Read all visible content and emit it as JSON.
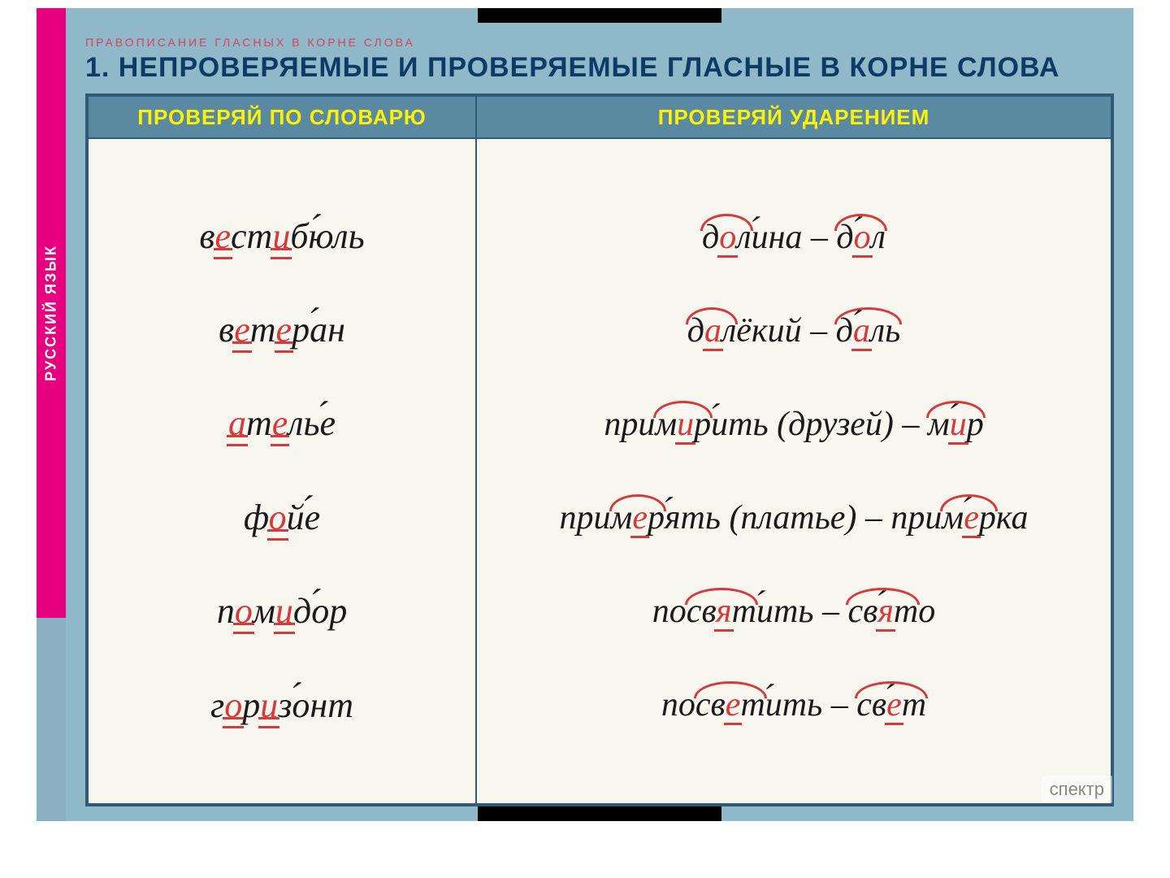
{
  "spine": {
    "label": "РУССКИЙ ЯЗЫК"
  },
  "overtitle": "ПРАВОПИСАНИЕ ГЛАСНЫХ В КОРНЕ СЛОВА",
  "title": "1. НЕПРОВЕРЯЕМЫЕ И ПРОВЕРЯЕМЫЕ ГЛАСНЫЕ В КОРНЕ СЛОВА",
  "headers": {
    "left": "ПРОВЕРЯЙ ПО СЛОВАРЮ",
    "right": "ПРОВЕРЯЙ УДАРЕНИЕМ"
  },
  "logo": "спектр",
  "colors": {
    "frame_bg": "#8fb9c9",
    "header_bg": "#5a8aa2",
    "header_text": "#fff200",
    "border": "#2f5a78",
    "panel_bg": "#f7f7ef",
    "text": "#1a1a1a",
    "highlight": "#d73a3a",
    "spine": "#e6007e",
    "title_text": "#0d3b66"
  },
  "left_column": [
    {
      "parts": [
        {
          "t": "в"
        },
        {
          "t": "е",
          "hl": "dbl"
        },
        {
          "t": "ст"
        },
        {
          "t": "и",
          "hl": "dbl"
        },
        {
          "t": "б"
        },
        {
          "t": "ю",
          "stress": true
        },
        {
          "t": "ль"
        }
      ]
    },
    {
      "parts": [
        {
          "t": "в"
        },
        {
          "t": "е",
          "hl": "dbl"
        },
        {
          "t": "т"
        },
        {
          "t": "е",
          "hl": "dbl"
        },
        {
          "t": "р"
        },
        {
          "t": "а",
          "stress": true
        },
        {
          "t": "н"
        }
      ]
    },
    {
      "parts": [
        {
          "t": "а",
          "hl": "dbl"
        },
        {
          "t": "т"
        },
        {
          "t": "е",
          "hl": "dbl"
        },
        {
          "t": "ль"
        },
        {
          "t": "е",
          "stress": true
        }
      ]
    },
    {
      "parts": [
        {
          "t": "ф"
        },
        {
          "t": "о",
          "hl": "dbl"
        },
        {
          "t": "й"
        },
        {
          "t": "е",
          "stress": true
        }
      ]
    },
    {
      "parts": [
        {
          "t": "п"
        },
        {
          "t": "о",
          "hl": "dbl"
        },
        {
          "t": "м"
        },
        {
          "t": "и",
          "hl": "dbl"
        },
        {
          "t": "д"
        },
        {
          "t": "о",
          "stress": true
        },
        {
          "t": "р"
        }
      ]
    },
    {
      "parts": [
        {
          "t": "г"
        },
        {
          "t": "о",
          "hl": "dbl"
        },
        {
          "t": "р"
        },
        {
          "t": "и",
          "hl": "dbl"
        },
        {
          "t": "з"
        },
        {
          "t": "о",
          "stress": true
        },
        {
          "t": "нт"
        }
      ]
    }
  ],
  "right_column": [
    {
      "parts": [
        {
          "arc": [
            {
              "t": "д"
            },
            {
              "t": "о",
              "hl": "sgl"
            },
            {
              "t": "л"
            }
          ]
        },
        {
          "t": "и",
          "stress": true
        },
        {
          "t": "на"
        },
        {
          "t": "–",
          "dash": true
        },
        {
          "arc": [
            {
              "t": "д"
            },
            {
              "t": "о",
              "hl": "sgl",
              "stress": true
            },
            {
              "t": "л"
            }
          ]
        }
      ]
    },
    {
      "parts": [
        {
          "arc": [
            {
              "t": "д"
            },
            {
              "t": "а",
              "hl": "sgl"
            },
            {
              "t": "л"
            }
          ]
        },
        {
          "t": "ёкий"
        },
        {
          "t": "–",
          "dash": true
        },
        {
          "arc": [
            {
              "t": "д"
            },
            {
              "t": "а",
              "hl": "sgl",
              "stress": true
            },
            {
              "t": "ль"
            }
          ]
        }
      ]
    },
    {
      "parts": [
        {
          "t": "при"
        },
        {
          "arc": [
            {
              "t": "м"
            },
            {
              "t": "и",
              "hl": "sgl"
            },
            {
              "t": "р"
            }
          ]
        },
        {
          "t": "и",
          "stress": true
        },
        {
          "t": "ть (друзей)"
        },
        {
          "t": "–",
          "dash": true
        },
        {
          "arc": [
            {
              "t": "м"
            },
            {
              "t": "и",
              "hl": "sgl",
              "stress": true
            },
            {
              "t": "р"
            }
          ]
        }
      ]
    },
    {
      "parts": [
        {
          "t": "при"
        },
        {
          "arc": [
            {
              "t": "м"
            },
            {
              "t": "е",
              "hl": "sgl"
            },
            {
              "t": "р"
            }
          ]
        },
        {
          "t": "я",
          "stress": true
        },
        {
          "t": "ть (платье)"
        },
        {
          "t": "–",
          "dash": true
        },
        {
          "t": "при"
        },
        {
          "arc": [
            {
              "t": "м"
            },
            {
              "t": "е",
              "hl": "sgl",
              "stress": true
            },
            {
              "t": "р"
            }
          ]
        },
        {
          "t": "ка"
        }
      ]
    },
    {
      "parts": [
        {
          "t": "по"
        },
        {
          "arc": [
            {
              "t": "св"
            },
            {
              "t": "я",
              "hl": "sgl"
            },
            {
              "t": "т"
            }
          ]
        },
        {
          "t": "и",
          "stress": true
        },
        {
          "t": "ть"
        },
        {
          "t": "–",
          "dash": true
        },
        {
          "arc": [
            {
              "t": "св"
            },
            {
              "t": "я",
              "hl": "sgl",
              "stress": true
            },
            {
              "t": "т"
            }
          ]
        },
        {
          "t": "о"
        }
      ]
    },
    {
      "parts": [
        {
          "t": "по"
        },
        {
          "arc": [
            {
              "t": "св"
            },
            {
              "t": "е",
              "hl": "sgl"
            },
            {
              "t": "т"
            }
          ]
        },
        {
          "t": "и",
          "stress": true
        },
        {
          "t": "ть"
        },
        {
          "t": "–",
          "dash": true
        },
        {
          "arc": [
            {
              "t": "св"
            },
            {
              "t": "е",
              "hl": "sgl",
              "stress": true
            },
            {
              "t": "т"
            }
          ]
        }
      ]
    }
  ]
}
